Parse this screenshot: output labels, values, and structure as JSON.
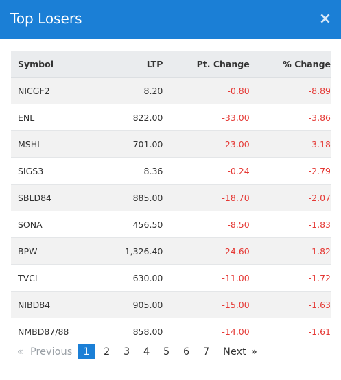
{
  "dialog": {
    "title": "Top Losers",
    "close_icon": "×"
  },
  "table": {
    "headers": {
      "symbol": "Symbol",
      "ltp": "LTP",
      "pt_change": "Pt. Change",
      "pct_change": "% Change"
    },
    "rows": [
      {
        "symbol": "NICGF2",
        "ltp": "8.20",
        "pt_change": "-0.80",
        "pct_change": "-8.89"
      },
      {
        "symbol": "ENL",
        "ltp": "822.00",
        "pt_change": "-33.00",
        "pct_change": "-3.86"
      },
      {
        "symbol": "MSHL",
        "ltp": "701.00",
        "pt_change": "-23.00",
        "pct_change": "-3.18"
      },
      {
        "symbol": "SIGS3",
        "ltp": "8.36",
        "pt_change": "-0.24",
        "pct_change": "-2.79"
      },
      {
        "symbol": "SBLD84",
        "ltp": "885.00",
        "pt_change": "-18.70",
        "pct_change": "-2.07"
      },
      {
        "symbol": "SONA",
        "ltp": "456.50",
        "pt_change": "-8.50",
        "pct_change": "-1.83"
      },
      {
        "symbol": "BPW",
        "ltp": "1,326.40",
        "pt_change": "-24.60",
        "pct_change": "-1.82"
      },
      {
        "symbol": "TVCL",
        "ltp": "630.00",
        "pt_change": "-11.00",
        "pct_change": "-1.72"
      },
      {
        "symbol": "NIBD84",
        "ltp": "905.00",
        "pt_change": "-15.00",
        "pct_change": "-1.63"
      },
      {
        "symbol": "NMBD87/88",
        "ltp": "858.00",
        "pt_change": "-14.00",
        "pct_change": "-1.61"
      }
    ]
  },
  "pagination": {
    "prev_arrow": "«",
    "prev_label": "Previous",
    "pages": [
      "1",
      "2",
      "3",
      "4",
      "5",
      "6",
      "7"
    ],
    "active_page": "1",
    "next_label": "Next",
    "next_arrow": "»"
  },
  "colors": {
    "header_bg": "#1b7fd6",
    "negative": "#e53935",
    "active_page_bg": "#1b7fd6"
  }
}
